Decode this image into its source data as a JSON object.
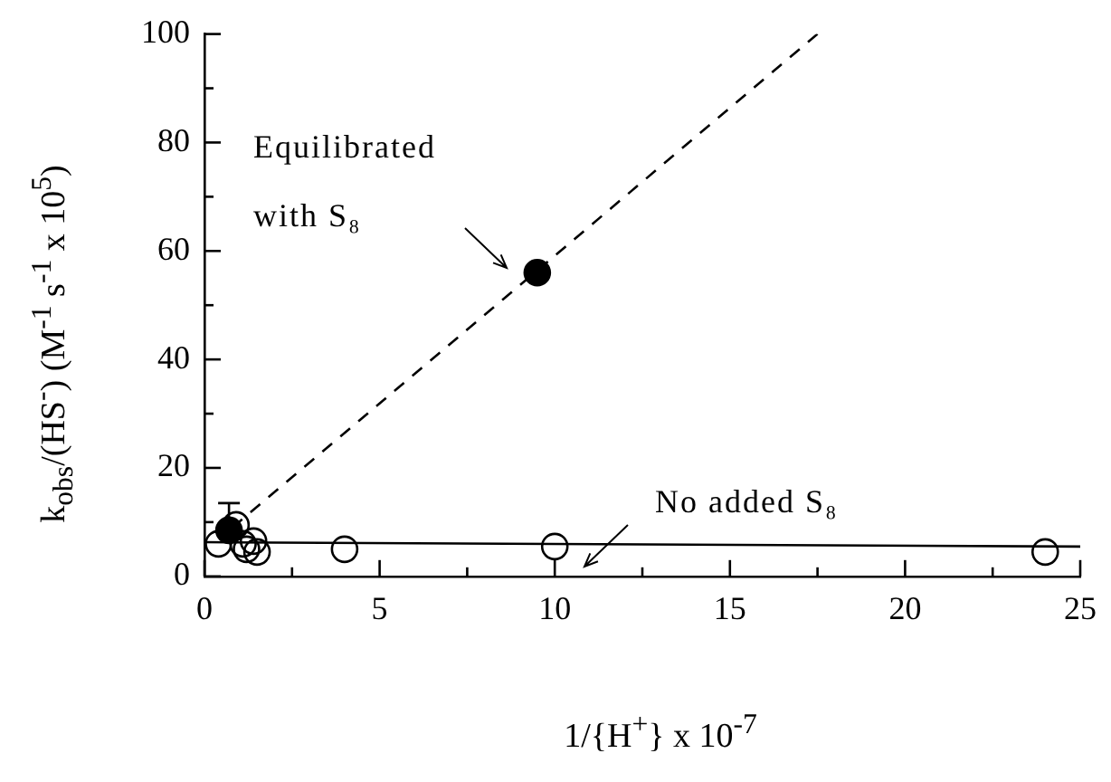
{
  "chart_data": {
    "type": "scatter",
    "xlabel": "1/{H$^{+}$} x 10$^{-7}$",
    "ylabel": "k$_{obs}$/(HS$^{-}$) (M$^{-1}$ s$^{-1}$ x 10$^{5}$)",
    "xlim": [
      0,
      25
    ],
    "ylim": [
      0,
      100
    ],
    "xticks": [
      0,
      {
        "value": 2.5,
        "label": null
      },
      5,
      {
        "value": 7.5,
        "label": null
      },
      10,
      {
        "value": 12.5,
        "label": null
      },
      15,
      {
        "value": 17.5,
        "label": null
      },
      20,
      {
        "value": 22.5,
        "label": null
      },
      25
    ],
    "yticks": [
      0,
      {
        "value": 10,
        "label": null
      },
      20,
      {
        "value": 30,
        "label": null
      },
      40,
      {
        "value": 50,
        "label": null
      },
      60,
      {
        "value": 70,
        "label": null
      },
      80,
      {
        "value": 90,
        "label": null
      },
      100
    ],
    "grid": false,
    "legend": false,
    "marker": "circle",
    "series": [
      {
        "type": "scatter",
        "color": "#000000",
        "x": [
          0.7,
          9.5
        ],
        "values": [
          8.5,
          56
        ],
        "errors": [
          [
            8.5,
            13.5
          ],
          null
        ]
      },
      {
        "type": "scatter",
        "color": "#000000",
        "x": [
          0.4,
          0.9,
          1.1,
          1.2,
          1.4,
          1.5,
          4,
          10,
          24
        ],
        "values": [
          6,
          9.5,
          6,
          5,
          6.5,
          4.5,
          5,
          5.5,
          4.5
        ]
      },
      {
        "type": "line",
        "color": "#000000",
        "line_style": "dashed",
        "marker": "none",
        "x": [
          0.8,
          17.5
        ],
        "values": [
          9,
          100
        ]
      },
      {
        "type": "line",
        "color": "#000000",
        "line_style": "solid",
        "marker": "none",
        "x": [
          0,
          25
        ],
        "values": [
          6.3,
          5.5
        ]
      }
    ],
    "annotations": [
      "Equilibrated\nwith S₈",
      "No added S₈"
    ]
  }
}
